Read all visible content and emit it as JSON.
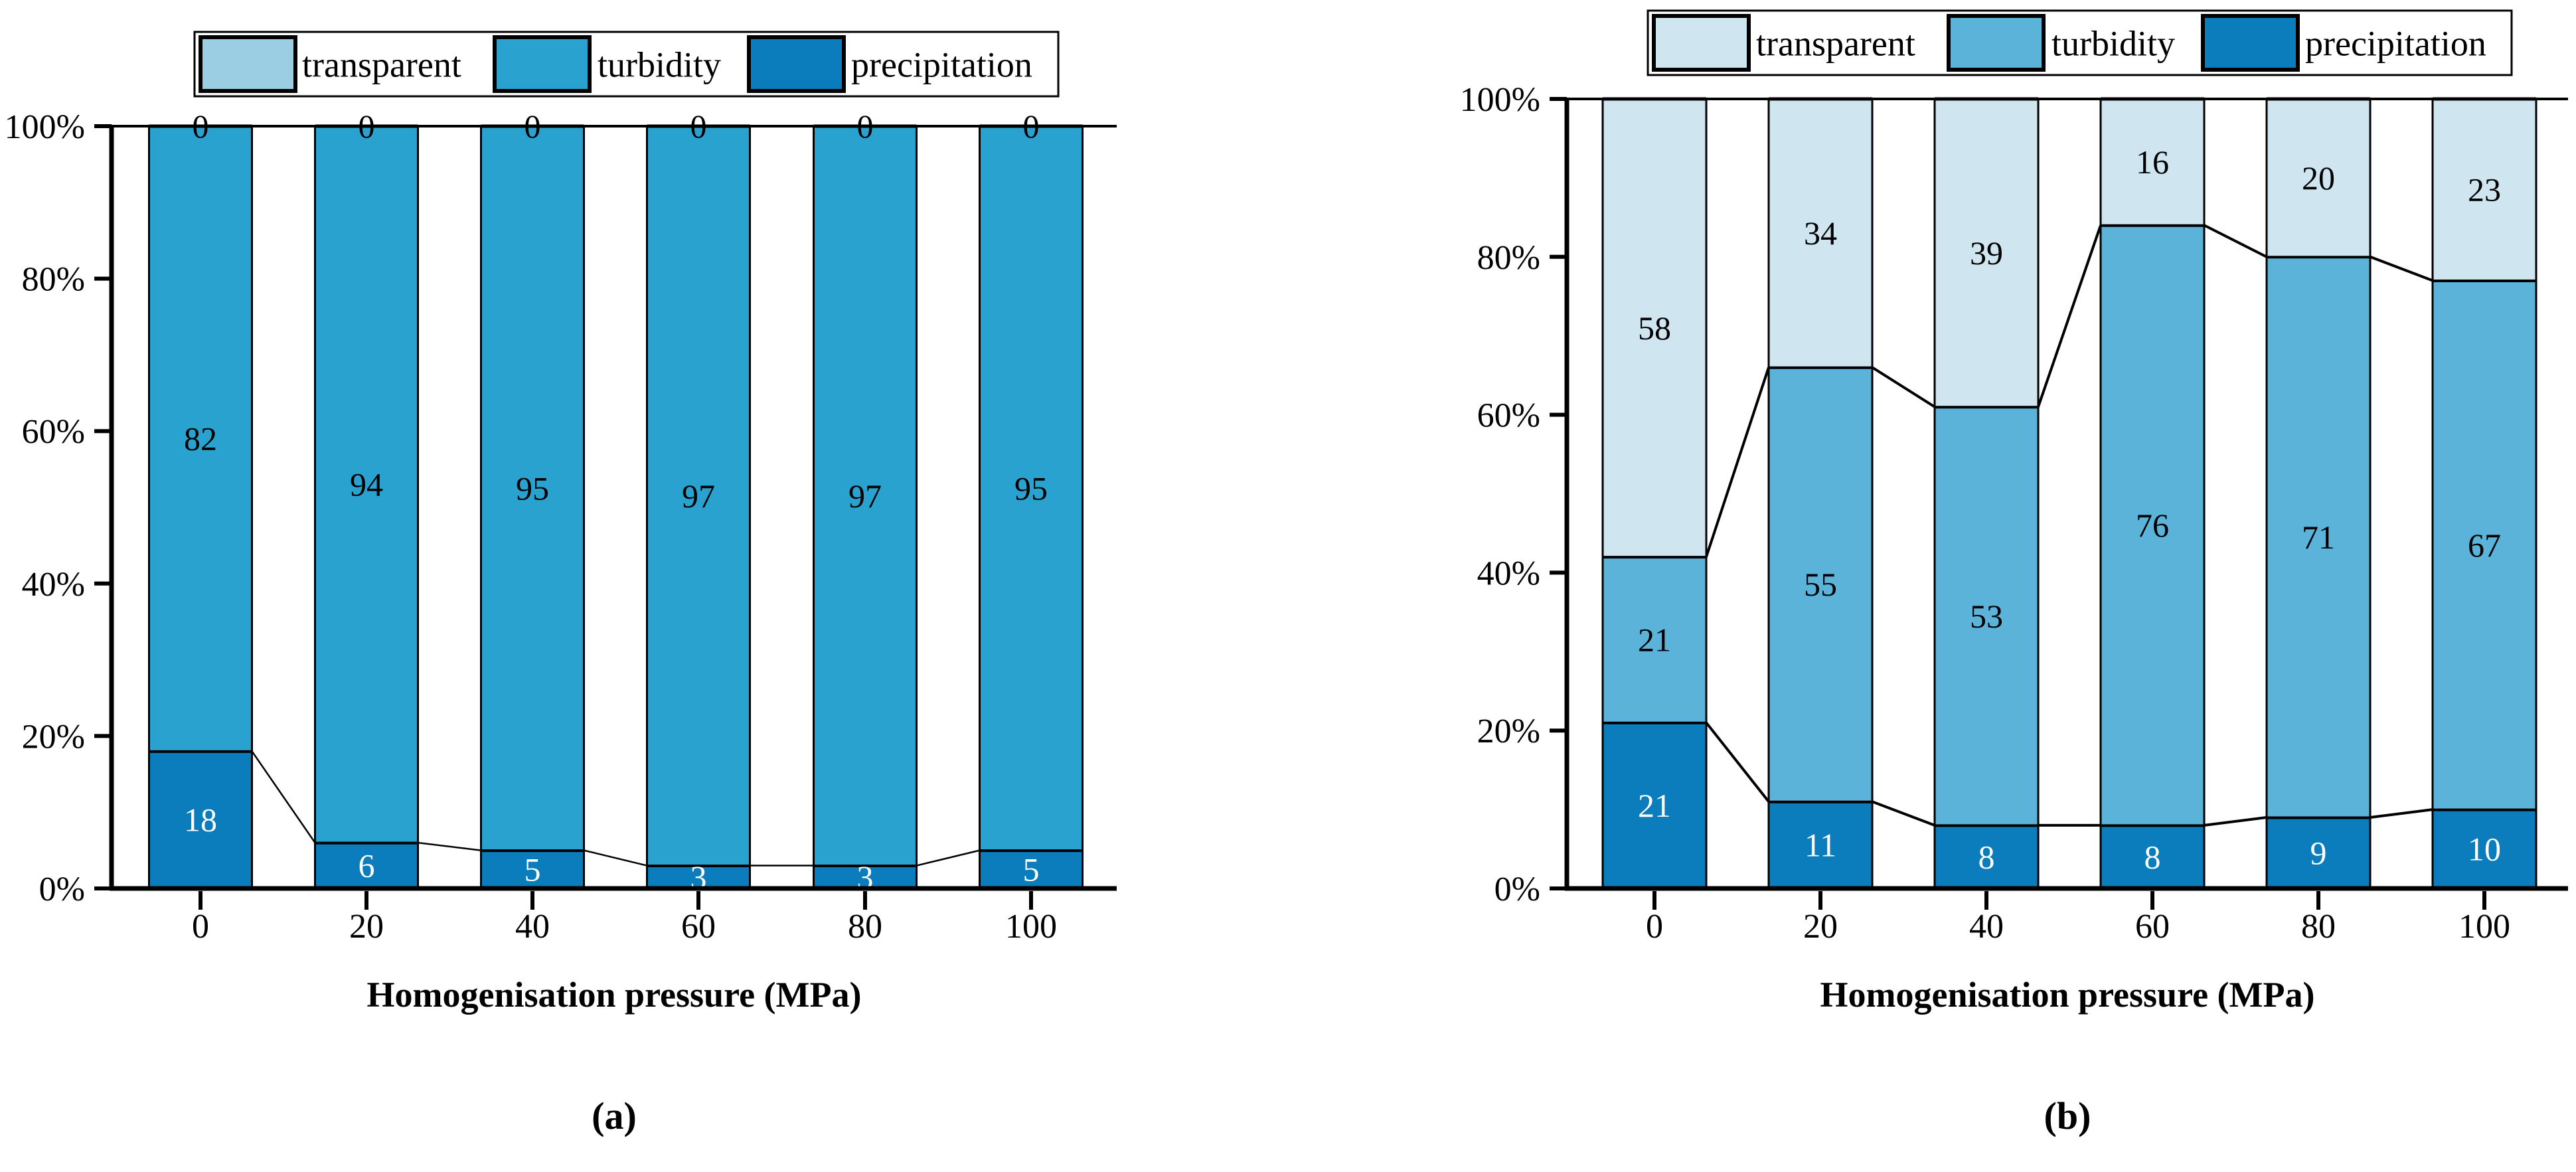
{
  "figure": {
    "background": "#ffffff",
    "ink_color": "#000000"
  },
  "chart_data": [
    {
      "panel": "(a)",
      "type": "bar",
      "stacked": true,
      "percent_stacked": true,
      "title": "",
      "xlabel": "Homogenisation pressure (MPa)",
      "ylabel": "",
      "categories": [
        "0",
        "20",
        "40",
        "60",
        "80",
        "100"
      ],
      "yticks": [
        "0%",
        "20%",
        "40%",
        "60%",
        "80%",
        "100%"
      ],
      "ylim": [
        0,
        100
      ],
      "grid": false,
      "legend_position": "top",
      "legend": [
        {
          "name": "transparent",
          "color": "#9bcde3"
        },
        {
          "name": "turbidity",
          "color": "#2aa2cf"
        },
        {
          "name": "precipitation",
          "color": "#0b7cbc"
        }
      ],
      "series": [
        {
          "name": "precipitation",
          "color": "#0b7cbc",
          "label_color": "#ffffff",
          "values": [
            18,
            6,
            5,
            3,
            3,
            5
          ]
        },
        {
          "name": "turbidity",
          "color": "#2aa2cf",
          "label_color": "#000000",
          "values": [
            82,
            94,
            95,
            97,
            97,
            95
          ]
        },
        {
          "name": "transparent",
          "color": "#9bcde3",
          "label_color": "#000000",
          "values": [
            0,
            0,
            0,
            0,
            0,
            0
          ]
        }
      ]
    },
    {
      "panel": "(b)",
      "type": "bar",
      "stacked": true,
      "percent_stacked": true,
      "title": "",
      "xlabel": "Homogenisation pressure (MPa)",
      "ylabel": "",
      "categories": [
        "0",
        "20",
        "40",
        "60",
        "80",
        "100"
      ],
      "yticks": [
        "0%",
        "20%",
        "40%",
        "60%",
        "80%",
        "100%"
      ],
      "ylim": [
        0,
        100
      ],
      "grid": false,
      "legend_position": "top",
      "legend": [
        {
          "name": "transparent",
          "color": "#cfe5ef"
        },
        {
          "name": "turbidity",
          "color": "#5bb3da"
        },
        {
          "name": "precipitation",
          "color": "#0b7cbc"
        }
      ],
      "series": [
        {
          "name": "precipitation",
          "color": "#0b7cbc",
          "label_color": "#ffffff",
          "values": [
            21,
            11,
            8,
            8,
            9,
            10
          ]
        },
        {
          "name": "turbidity",
          "color": "#5bb3da",
          "label_color": "#000000",
          "values": [
            21,
            55,
            53,
            76,
            71,
            67
          ]
        },
        {
          "name": "transparent",
          "color": "#cfe5ef",
          "label_color": "#000000",
          "values": [
            58,
            34,
            39,
            16,
            20,
            23
          ]
        }
      ]
    }
  ]
}
